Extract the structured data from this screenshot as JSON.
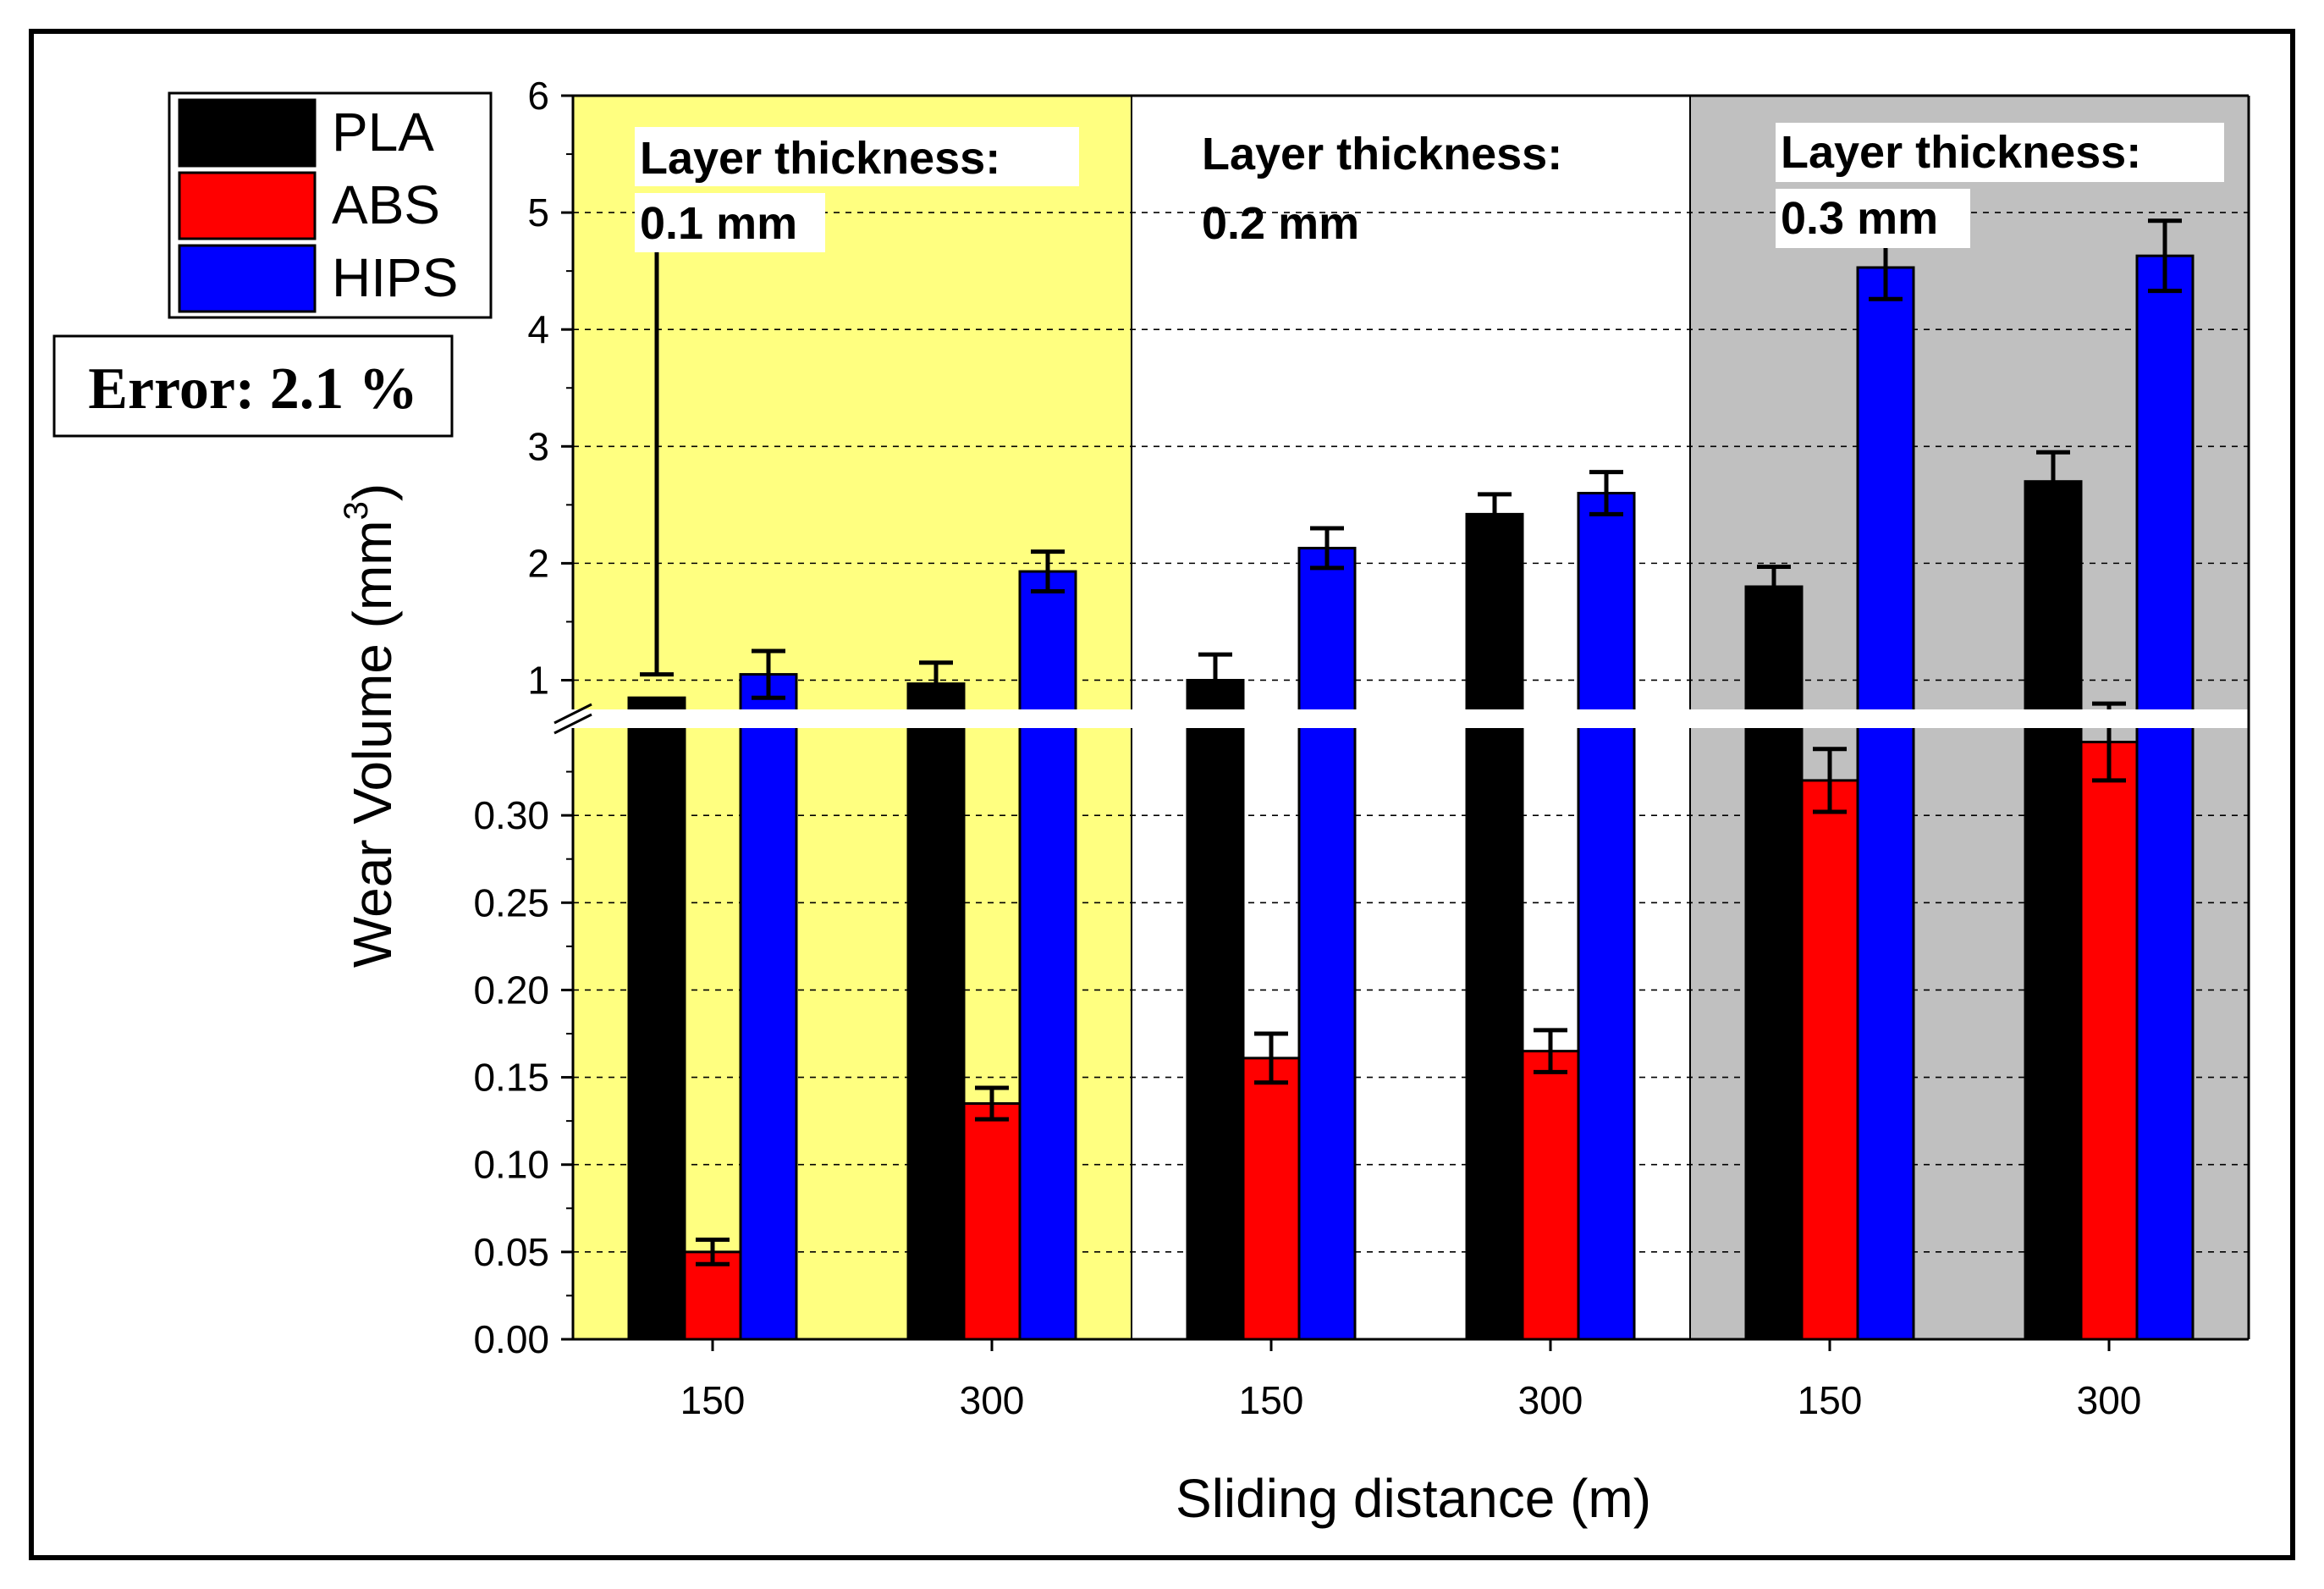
{
  "chart_data": {
    "type": "bar",
    "xlabel": "Sliding distance (m)",
    "ylabel": "Wear Volume (mm",
    "ylabel_sup": "3",
    "ylabel_close": ")",
    "categories": [
      "150",
      "300",
      "150",
      "300",
      "150",
      "300"
    ],
    "panels": [
      {
        "label_line1": "Layer thickness:",
        "label_line2": "0.1 mm",
        "background": "#ffff80"
      },
      {
        "label_line1": "Layer thickness:",
        "label_line2": "0.2 mm",
        "background": "#ffffff"
      },
      {
        "label_line1": "Layer thickness:",
        "label_line2": "0.3 mm",
        "background": "#c0c0c0"
      }
    ],
    "series": [
      {
        "name": "PLA",
        "color": "#000000",
        "values": [
          0.85,
          0.97,
          1.0,
          2.42,
          1.8,
          2.7
        ],
        "errors": [
          0.2,
          0.18,
          0.22,
          0.17,
          0.17,
          0.25
        ]
      },
      {
        "name": "ABS",
        "color": "#ff0000",
        "values": [
          0.05,
          0.135,
          0.161,
          0.165,
          0.32,
          0.342
        ],
        "errors": [
          0.007,
          0.009,
          0.014,
          0.012,
          0.018,
          0.022
        ]
      },
      {
        "name": "HIPS",
        "color": "#0000ff",
        "values": [
          1.05,
          1.93,
          2.13,
          2.6,
          4.53,
          4.63
        ],
        "errors": [
          0.2,
          0.17,
          0.17,
          0.18,
          0.27,
          0.3
        ]
      }
    ],
    "y_lower": {
      "range": [
        0,
        0.35
      ],
      "ticks": [
        "0.00",
        "0.05",
        "0.10",
        "0.15",
        "0.20",
        "0.25",
        "0.30"
      ]
    },
    "y_upper": {
      "range": [
        0.75,
        6
      ],
      "ticks": [
        "1",
        "2",
        "3",
        "4",
        "5",
        "6"
      ]
    },
    "axis_break": true,
    "grid": "dashed-horizontal",
    "legend_placement": "top-left",
    "annotation": "Error: 2.1 %"
  }
}
